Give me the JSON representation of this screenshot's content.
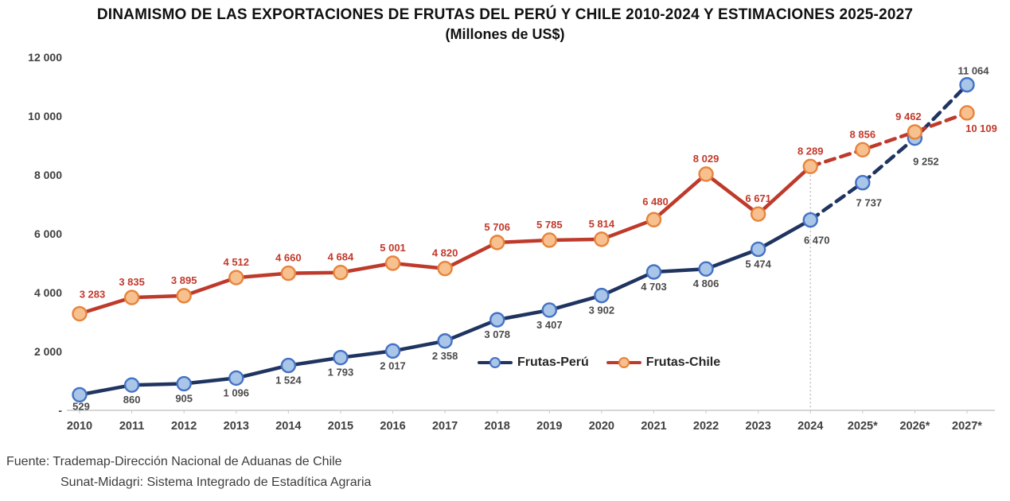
{
  "title": {
    "line1": "DINAMISMO DE LAS EXPORTACIONES DE FRUTAS DEL PERÚ Y CHILE  2010-2024 Y ESTIMACIONES 2025-2027",
    "line2": "(Millones de US$)"
  },
  "chart_data": {
    "type": "line",
    "title": "DINAMISMO DE LAS EXPORTACIONES DE FRUTAS DEL PERÚ Y CHILE 2010-2024 Y ESTIMACIONES 2025-2027",
    "subtitle": "(Millones de US$)",
    "unit": "Millones de US$",
    "categories": [
      "2010",
      "2011",
      "2012",
      "2013",
      "2014",
      "2015",
      "2016",
      "2017",
      "2018",
      "2019",
      "2020",
      "2021",
      "2022",
      "2023",
      "2024",
      "2025*",
      "2026*",
      "2027*"
    ],
    "estimate_start_index": 14,
    "divider_category": "2024",
    "ylim": [
      0,
      12000
    ],
    "yticks": [
      {
        "value": 12000,
        "label": "12 000"
      },
      {
        "value": 10000,
        "label": "10 000"
      },
      {
        "value": 8000,
        "label": "8 000"
      },
      {
        "value": 6000,
        "label": "6 000"
      },
      {
        "value": 4000,
        "label": "4 000"
      },
      {
        "value": 2000,
        "label": "2 000"
      },
      {
        "value": 0,
        "label": "-"
      }
    ],
    "grid": false,
    "legend_position": "inside-bottom-center",
    "series": [
      {
        "name": "Frutas-Perú",
        "line_color": "#1F3460",
        "marker_fill": "#A9C5E8",
        "marker_stroke": "#4472C4",
        "label_color": "#4A4A4A",
        "values": [
          529,
          860,
          905,
          1096,
          1524,
          1793,
          2017,
          2358,
          3078,
          3407,
          3902,
          4703,
          4806,
          5474,
          6470,
          7737,
          9252,
          11064
        ]
      },
      {
        "name": "Frutas-Chile",
        "line_color": "#BE3A2B",
        "marker_fill": "#F7C08F",
        "marker_stroke": "#E8833A",
        "label_color": "#C2392B",
        "values": [
          3283,
          3835,
          3895,
          4512,
          4660,
          4684,
          5001,
          4820,
          5706,
          5785,
          5814,
          6480,
          8029,
          6671,
          8289,
          8856,
          9462,
          10109
        ]
      }
    ]
  },
  "legend": {
    "peru_label": "Frutas-Perú",
    "chile_label": "Frutas-Chile"
  },
  "footer": {
    "line1": "Fuente: Trademap-Dirección Nacional de Aduanas de Chile",
    "line2": "Sunat-Midagri: Sistema Integrado de Estadítica Agraria"
  },
  "colors": {
    "axis_line": "#c9c9c9",
    "tick_text": "#404040",
    "divider_line": "#b8b8b8",
    "title_text": "#111111"
  }
}
